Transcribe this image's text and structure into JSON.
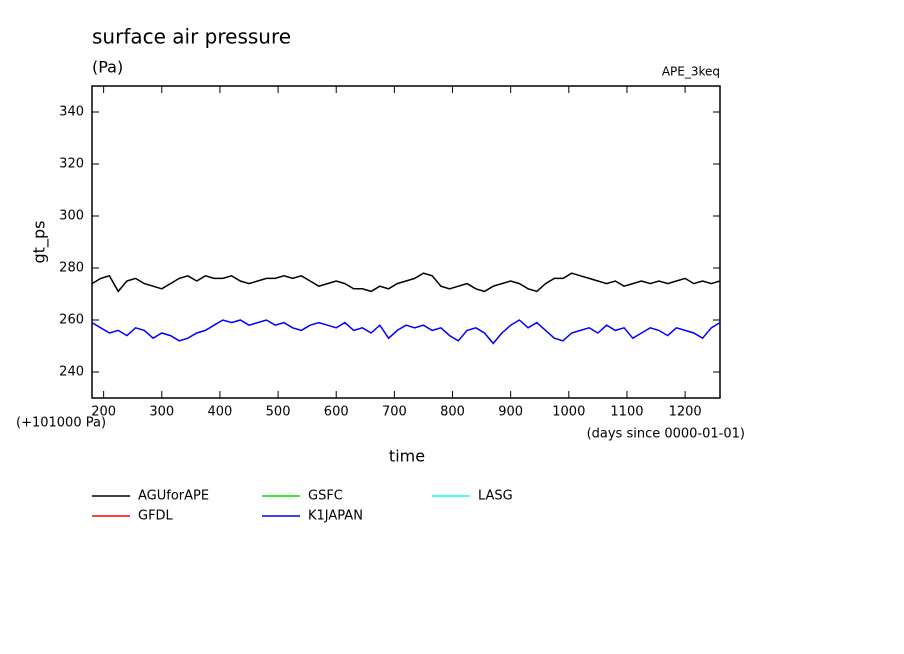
{
  "chart_data": {
    "type": "line",
    "title": "surface air pressure",
    "subtitle": "(Pa)",
    "annotation": "APE_3keq",
    "y_label": "gt_ps",
    "x_label": "time",
    "y_offset_label": "(+101000 Pa)",
    "x_unit_label": "(days since 0000-01-01)",
    "x": [
      180,
      195,
      210,
      225,
      240,
      255,
      270,
      285,
      300,
      315,
      330,
      345,
      360,
      375,
      390,
      405,
      420,
      435,
      450,
      465,
      480,
      495,
      510,
      525,
      540,
      555,
      570,
      585,
      600,
      615,
      630,
      645,
      660,
      675,
      690,
      705,
      720,
      735,
      750,
      765,
      780,
      795,
      810,
      825,
      840,
      855,
      870,
      885,
      900,
      915,
      930,
      945,
      960,
      975,
      990,
      1005,
      1020,
      1035,
      1050,
      1065,
      1080,
      1095,
      1110,
      1125,
      1140,
      1155,
      1170,
      1185,
      1200,
      1215,
      1230,
      1245,
      1260
    ],
    "series": [
      {
        "name": "AGUforAPE",
        "color": "#000000",
        "values": [
          274,
          276,
          277,
          271,
          275,
          276,
          274,
          273,
          272,
          274,
          276,
          277,
          275,
          277,
          276,
          276,
          277,
          275,
          274,
          275,
          276,
          276,
          277,
          276,
          277,
          275,
          273,
          274,
          275,
          274,
          272,
          272,
          271,
          273,
          272,
          274,
          275,
          276,
          278,
          277,
          273,
          272,
          273,
          274,
          272,
          271,
          273,
          274,
          275,
          274,
          272,
          271,
          274,
          276,
          276,
          278,
          277,
          276,
          275,
          274,
          275,
          273,
          274,
          275,
          274,
          275,
          274,
          275,
          276,
          274,
          275,
          274,
          275
        ]
      },
      {
        "name": "GFDL",
        "color": "#ff0000",
        "values": [
          null,
          null,
          null,
          null,
          null,
          null,
          null,
          null,
          null,
          null,
          null,
          null,
          null,
          null,
          null,
          null,
          null,
          null,
          null,
          null,
          null,
          null,
          null,
          null,
          null,
          null,
          null,
          null,
          null,
          null,
          null,
          null,
          null,
          null,
          null,
          null,
          null,
          null,
          null,
          null,
          null,
          null,
          null,
          null,
          null,
          null,
          null,
          null,
          null,
          null,
          null,
          null,
          null,
          null,
          null,
          null,
          null,
          null,
          null,
          null,
          null,
          null,
          null,
          null,
          null,
          null,
          null,
          null,
          null,
          null,
          null,
          null,
          null
        ]
      },
      {
        "name": "GSFC",
        "color": "#00dd00",
        "values": [
          null,
          null,
          null,
          null,
          null,
          null,
          null,
          null,
          null,
          null,
          null,
          null,
          null,
          null,
          null,
          null,
          null,
          null,
          null,
          null,
          null,
          null,
          null,
          null,
          null,
          null,
          null,
          null,
          null,
          null,
          null,
          null,
          null,
          null,
          null,
          null,
          null,
          null,
          null,
          null,
          null,
          null,
          null,
          null,
          null,
          null,
          null,
          null,
          null,
          null,
          null,
          null,
          null,
          null,
          null,
          null,
          null,
          null,
          null,
          null,
          null,
          null,
          null,
          null,
          null,
          null,
          null,
          null,
          null,
          null,
          null,
          null,
          null
        ]
      },
      {
        "name": "K1JAPAN",
        "color": "#0000ff",
        "values": [
          259,
          257,
          255,
          256,
          254,
          257,
          256,
          253,
          255,
          254,
          252,
          253,
          255,
          256,
          258,
          260,
          259,
          260,
          258,
          259,
          260,
          258,
          259,
          257,
          256,
          258,
          259,
          258,
          257,
          259,
          256,
          257,
          255,
          258,
          253,
          256,
          258,
          257,
          258,
          256,
          257,
          254,
          252,
          256,
          257,
          255,
          251,
          255,
          258,
          260,
          257,
          259,
          256,
          253,
          252,
          255,
          256,
          257,
          255,
          258,
          256,
          257,
          253,
          255,
          257,
          256,
          254,
          257,
          256,
          255,
          253,
          257,
          259
        ]
      },
      {
        "name": "LASG",
        "color": "#00ffff",
        "values": [
          null,
          null,
          null,
          null,
          null,
          null,
          null,
          null,
          null,
          null,
          null,
          null,
          null,
          null,
          null,
          null,
          null,
          null,
          null,
          null,
          null,
          null,
          null,
          null,
          null,
          null,
          null,
          null,
          null,
          null,
          null,
          null,
          null,
          null,
          null,
          null,
          null,
          null,
          null,
          null,
          null,
          null,
          null,
          null,
          null,
          null,
          null,
          null,
          null,
          null,
          null,
          null,
          null,
          null,
          null,
          null,
          null,
          null,
          null,
          null,
          null,
          null,
          null,
          null,
          null,
          null,
          null,
          null,
          null,
          null,
          null,
          null,
          null
        ]
      }
    ],
    "xlim": [
      180,
      1260
    ],
    "xticks": [
      200,
      300,
      400,
      500,
      600,
      700,
      800,
      900,
      1000,
      1100,
      1200
    ],
    "ylim": [
      230,
      350
    ],
    "yticks": [
      240,
      260,
      280,
      300,
      320,
      340
    ],
    "grid": false
  }
}
